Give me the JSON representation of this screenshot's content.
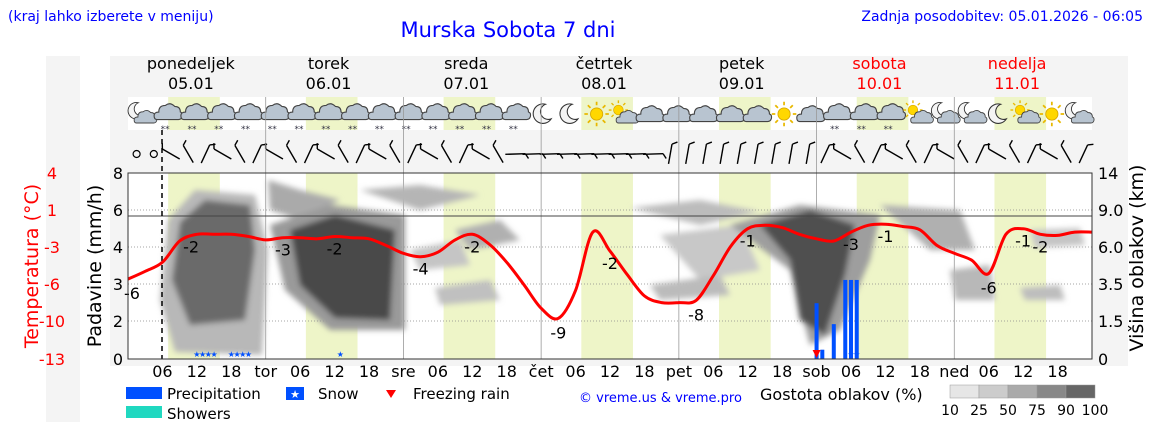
{
  "header": {
    "hint": "(kraj lahko izberete v meniju)",
    "title": "Murska Sobota 7 dni",
    "updated": "Zadnja posodobitev: 05.01.2026 - 06:05"
  },
  "credit": "© vreme.us & vreme.pro",
  "colors": {
    "temp": "#ff0000",
    "precip": "#0050ff",
    "showers": "#20d8c0",
    "day": "#eef5c8",
    "title": "#0000ff"
  },
  "chart_data": {
    "type": "line",
    "title": "Murska Sobota 7 dni",
    "ylabel_left_temp": "Temperatura (°C)",
    "ylabel_left_precip": "Padavine (mm/h)",
    "ylabel_right": "Višina oblakov (km)",
    "temp_ticks": [
      "4",
      "1",
      "-3",
      "-6",
      "-10",
      "-13"
    ],
    "precip_ticks": [
      "8",
      "6",
      "4",
      "3",
      "2",
      "0"
    ],
    "cloud_height_ticks": [
      "14",
      "9.0",
      "6.0",
      "3.5",
      "1.5",
      "0"
    ],
    "days": [
      {
        "name": "ponedeljek",
        "date": "05.01",
        "weekend": false
      },
      {
        "name": "torek",
        "date": "06.01",
        "weekend": false
      },
      {
        "name": "sreda",
        "date": "07.01",
        "weekend": false
      },
      {
        "name": "četrtek",
        "date": "08.01",
        "weekend": false
      },
      {
        "name": "petek",
        "date": "09.01",
        "weekend": false
      },
      {
        "name": "sobota",
        "date": "10.01",
        "weekend": true
      },
      {
        "name": "nedelja",
        "date": "11.01",
        "weekend": true
      }
    ],
    "x_ticks": [
      {
        "h": 6,
        "label": "06"
      },
      {
        "h": 12,
        "label": "12"
      },
      {
        "h": 18,
        "label": "18"
      },
      {
        "h": 24,
        "label": "tor"
      },
      {
        "h": 30,
        "label": "06"
      },
      {
        "h": 36,
        "label": "12"
      },
      {
        "h": 42,
        "label": "18"
      },
      {
        "h": 48,
        "label": "sre"
      },
      {
        "h": 54,
        "label": "06"
      },
      {
        "h": 60,
        "label": "12"
      },
      {
        "h": 66,
        "label": "18"
      },
      {
        "h": 72,
        "label": "čet"
      },
      {
        "h": 78,
        "label": "06"
      },
      {
        "h": 84,
        "label": "12"
      },
      {
        "h": 90,
        "label": "18"
      },
      {
        "h": 96,
        "label": "pet"
      },
      {
        "h": 102,
        "label": "06"
      },
      {
        "h": 108,
        "label": "12"
      },
      {
        "h": 114,
        "label": "18"
      },
      {
        "h": 120,
        "label": "sob"
      },
      {
        "h": 126,
        "label": "06"
      },
      {
        "h": 132,
        "label": "12"
      },
      {
        "h": 138,
        "label": "18"
      },
      {
        "h": 144,
        "label": "ned"
      },
      {
        "h": 150,
        "label": "06"
      },
      {
        "h": 156,
        "label": "12"
      },
      {
        "h": 162,
        "label": "18"
      }
    ],
    "now_hour": 6,
    "temperature": {
      "hours": [
        0,
        3,
        6,
        9,
        12,
        15,
        18,
        21,
        24,
        27,
        30,
        33,
        36,
        39,
        42,
        45,
        48,
        51,
        54,
        57,
        60,
        63,
        66,
        69,
        72,
        75,
        78,
        81,
        84,
        87,
        90,
        93,
        96,
        99,
        102,
        105,
        108,
        111,
        114,
        117,
        120,
        123,
        126,
        129,
        132,
        135,
        138,
        141,
        144,
        147,
        150,
        153,
        156,
        159,
        162,
        165,
        168
      ],
      "values": [
        -6,
        -5.3,
        -4.5,
        -2.6,
        -2,
        -2,
        -2,
        -2.2,
        -2.5,
        -2.3,
        -2.3,
        -2.4,
        -2.2,
        -2.3,
        -2.4,
        -3,
        -3.7,
        -4,
        -3.6,
        -2.5,
        -2,
        -2.9,
        -4.5,
        -6.5,
        -8.6,
        -9.5,
        -7,
        -1.8,
        -3.5,
        -5.6,
        -7.5,
        -8.1,
        -8.1,
        -7.9,
        -5.7,
        -3.1,
        -1.5,
        -1.2,
        -1.4,
        -2,
        -2.4,
        -2.6,
        -1.8,
        -1.2,
        -1.1,
        -1.3,
        -1.6,
        -3,
        -3.7,
        -4.3,
        -5.5,
        -2,
        -1.5,
        -2,
        -2.1,
        -1.8,
        -1.8
      ]
    },
    "temp_labels": [
      {
        "hour": 0,
        "text": "-6"
      },
      {
        "hour": 11,
        "text": "-2"
      },
      {
        "hour": 27,
        "text": "-3"
      },
      {
        "hour": 36,
        "text": "-2"
      },
      {
        "hour": 51,
        "text": "-4"
      },
      {
        "hour": 60,
        "text": "-2"
      },
      {
        "hour": 75,
        "text": "-9"
      },
      {
        "hour": 84,
        "text": "-2"
      },
      {
        "hour": 99,
        "text": "-8"
      },
      {
        "hour": 108,
        "text": "-1"
      },
      {
        "hour": 126,
        "text": "-3"
      },
      {
        "hour": 132,
        "text": "-1"
      },
      {
        "hour": 150,
        "text": "-6"
      },
      {
        "hour": 156,
        "text": "-1"
      },
      {
        "hour": 159,
        "text": "-2"
      }
    ],
    "precipitation": [
      {
        "hour": 120,
        "value": 2.4
      },
      {
        "hour": 121,
        "value": 0.4
      },
      {
        "hour": 123,
        "value": 1.5
      },
      {
        "hour": 125,
        "value": 3.4
      },
      {
        "hour": 126,
        "value": 3.4
      },
      {
        "hour": 127,
        "value": 3.4
      }
    ],
    "snow_hours": [
      12,
      13,
      14,
      15,
      18,
      19,
      20,
      21,
      37,
      126,
      127
    ],
    "freezing_rain_hours": [
      120
    ],
    "sky": [
      "moon-cloud",
      "cloud-snow",
      "cloud-snow",
      "cloud-snow",
      "cloud-snow",
      "cloud-snow",
      "cloud-snow",
      "cloud-snow",
      "cloud-snow",
      "cloud-snow",
      "cloud-snow",
      "cloud-snow",
      "cloud-snow",
      "cloud-snow",
      "cloud-snow",
      "moon",
      "moon",
      "sun",
      "sun-cloud",
      "cloud",
      "cloud",
      "cloud",
      "cloud",
      "cloud",
      "sun",
      "cloud",
      "cloud-snow",
      "cloud-snow",
      "cloud-snow",
      "sun-cloud",
      "moon-cloud",
      "moon-cloud",
      "moon",
      "sun-cloud",
      "sun",
      "moon-cloud"
    ],
    "legend": {
      "precipitation": "Precipitation",
      "snow": "Snow",
      "freezing_rain": "Freezing rain",
      "showers": "Showers",
      "cloud_density": "Gostota oblakov (%)",
      "cloud_levels": [
        "10",
        "25",
        "50",
        "75",
        "90",
        "100"
      ]
    }
  }
}
